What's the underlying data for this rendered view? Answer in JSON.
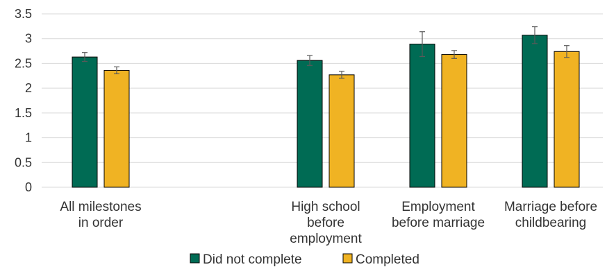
{
  "chart_data": {
    "type": "bar",
    "title": "",
    "xlabel": "",
    "ylabel": "",
    "ylim": [
      0,
      3.5
    ],
    "yticks": [
      "0",
      "0.5",
      "1",
      "1.5",
      "2",
      "2.5",
      "3",
      "3.5"
    ],
    "grid": true,
    "legend_position": "bottom",
    "categories": [
      [
        "All milestones",
        "in order"
      ],
      [
        "High school",
        "before",
        "employment"
      ],
      [
        "Employment",
        "before marriage"
      ],
      [
        "Marriage before",
        "childbearing"
      ]
    ],
    "series": [
      {
        "name": "Did not complete",
        "color": "#006b54",
        "values": [
          2.63,
          2.56,
          2.89,
          3.07
        ],
        "error": [
          0.09,
          0.1,
          0.25,
          0.17
        ]
      },
      {
        "name": "Completed",
        "color": "#f0b323",
        "values": [
          2.36,
          2.27,
          2.68,
          2.74
        ],
        "error": [
          0.07,
          0.07,
          0.08,
          0.12
        ]
      }
    ]
  }
}
